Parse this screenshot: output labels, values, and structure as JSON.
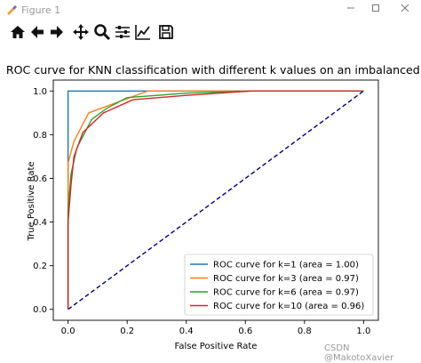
{
  "window": {
    "title": "Figure 1",
    "minimize_icon": "minimize-icon",
    "maximize_icon": "maximize-icon",
    "close_icon": "close-icon"
  },
  "toolbar": {
    "tools": [
      "home-icon",
      "back-arrow-icon",
      "forward-arrow-icon",
      "pan-icon",
      "zoom-icon",
      "subplots-config-icon",
      "edit-axis-icon",
      "save-icon"
    ]
  },
  "chart_data": {
    "type": "line",
    "title": "ROC curve for KNN classification with different k values on an imbalanced data",
    "xlabel": "False Positive Rate",
    "ylabel": "True Positive Rate",
    "xlim": [
      -0.05,
      1.05
    ],
    "ylim": [
      -0.05,
      1.05
    ],
    "xticks": [
      "0.0",
      "0.2",
      "0.4",
      "0.6",
      "0.8",
      "1.0"
    ],
    "yticks": [
      "0.0",
      "0.2",
      "0.4",
      "0.6",
      "0.8",
      "1.0"
    ],
    "grid": false,
    "legend_position": "lower right",
    "series": [
      {
        "name": "ROC curve for k=1 (area = 1.00)",
        "color": "#1f77b4",
        "x": [
          0.0,
          0.0,
          1.0
        ],
        "y": [
          0.0,
          1.0,
          1.0
        ]
      },
      {
        "name": "ROC curve for k=3 (area = 0.97)",
        "color": "#ff7f0e",
        "x": [
          0.0,
          0.0,
          0.02,
          0.07,
          0.27,
          1.0
        ],
        "y": [
          0.0,
          0.67,
          0.77,
          0.9,
          1.0,
          1.0
        ]
      },
      {
        "name": "ROC curve for k=6 (area = 0.97)",
        "color": "#2ca02c",
        "x": [
          0.0,
          0.0,
          0.01,
          0.03,
          0.08,
          0.13,
          0.2,
          0.4,
          0.62,
          1.0
        ],
        "y": [
          0.0,
          0.45,
          0.62,
          0.74,
          0.87,
          0.92,
          0.97,
          0.99,
          1.0,
          1.0
        ]
      },
      {
        "name": "ROC curve for k=10 (area = 0.96)",
        "color": "#d62728",
        "x": [
          0.0,
          0.0,
          0.01,
          0.02,
          0.05,
          0.12,
          0.22,
          0.4,
          0.62,
          1.0
        ],
        "y": [
          0.0,
          0.4,
          0.57,
          0.7,
          0.81,
          0.9,
          0.96,
          0.98,
          1.0,
          1.0
        ]
      }
    ],
    "reference_line": {
      "x": [
        0.0,
        1.0
      ],
      "y": [
        0.0,
        1.0
      ],
      "color": "#000080",
      "style": "dashed"
    }
  },
  "watermark": "CSDN @MakotoXavier"
}
